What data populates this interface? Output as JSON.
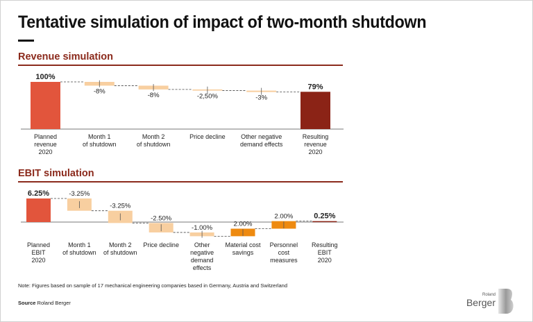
{
  "title": "Tentative simulation of impact of two-month shutdown",
  "note": "Note: Figures based on sample of 17 mechanical engineering companies based in Germany, Austria and Switzerland",
  "source_label": "Source",
  "source_value": "Roland Berger",
  "logo": {
    "line1": "Roland",
    "line2": "Berger"
  },
  "colors": {
    "accent": "#8b2a1c",
    "start": "#e2553c",
    "end": "#8b2316",
    "decrease": "#f8cfa0",
    "increase": "#ee8a10"
  },
  "chart_data": [
    {
      "type": "waterfall",
      "title": "Revenue simulation",
      "categories": [
        "Planned revenue 2020",
        "Month 1 of shutdown",
        "Month 2 of shutdown",
        "Price decline",
        "Other negative demand effects",
        "Resulting revenue 2020"
      ],
      "category_lines": [
        [
          "Planned",
          "revenue",
          "2020"
        ],
        [
          "Month 1",
          "of shutdown"
        ],
        [
          "Month 2",
          "of shutdown"
        ],
        [
          "Price decline"
        ],
        [
          "Other negative",
          "demand effects"
        ],
        [
          "Resulting",
          "revenue",
          "2020"
        ]
      ],
      "kinds": [
        "total",
        "delta",
        "delta",
        "delta",
        "delta",
        "total"
      ],
      "values": [
        100,
        -8,
        -8,
        -2.5,
        -3,
        79
      ],
      "labels": [
        "100%",
        "-8%",
        "-8%",
        "-2,50%",
        "-3%",
        "79%"
      ],
      "unit": "%",
      "ylim": [
        0,
        100
      ]
    },
    {
      "type": "waterfall",
      "title": "EBIT simulation",
      "categories": [
        "Planned EBIT 2020",
        "Month 1 of shutdown",
        "Month 2 of shutdown",
        "Price decline",
        "Other negative demand effects",
        "Material cost savings",
        "Personnel cost measures",
        "Resulting EBIT 2020"
      ],
      "category_lines": [
        [
          "Planned",
          "EBIT",
          "2020"
        ],
        [
          "Month 1",
          "of shutdown"
        ],
        [
          "Month 2",
          "of shutdown"
        ],
        [
          "Price decline"
        ],
        [
          "Other",
          "negative",
          "demand",
          "effects"
        ],
        [
          "Material cost",
          "savings"
        ],
        [
          "Personnel",
          "cost",
          "measures"
        ],
        [
          "Resulting",
          "EBIT",
          "2020"
        ]
      ],
      "kinds": [
        "total",
        "delta",
        "delta",
        "delta",
        "delta",
        "delta",
        "delta",
        "total"
      ],
      "values": [
        6.25,
        -3.25,
        -3.25,
        -2.5,
        -1.0,
        2.0,
        2.0,
        0.25
      ],
      "labels": [
        "6.25%",
        "-3.25%",
        "-3.25%",
        "-2.50%",
        "-1.00%",
        "2.00%",
        "2.00%",
        "0.25%"
      ],
      "unit": "%",
      "ylim": [
        -3.75,
        6.25
      ]
    }
  ]
}
